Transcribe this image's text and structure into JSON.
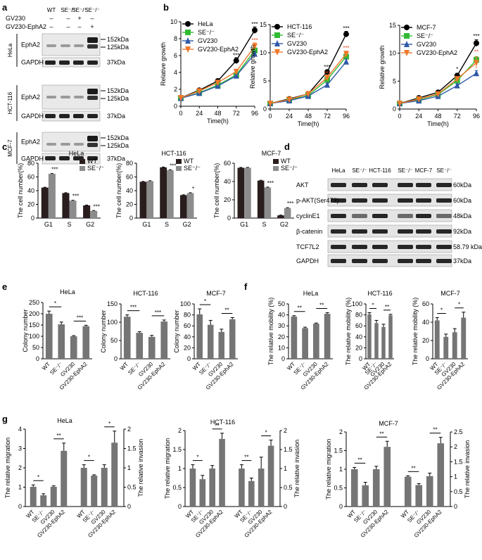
{
  "figure": {
    "panel_letters": [
      "a",
      "b",
      "c",
      "d",
      "e",
      "f",
      "g"
    ],
    "colors": {
      "dark_bar": "#2a1d1d",
      "gray_bar": "#8c8c8c",
      "mid_bar": "#757575",
      "asterisk_red": "#e8502a"
    }
  },
  "blot_a": {
    "columns": [
      "WT",
      "SE⁻/⁻",
      "SE⁻/⁻",
      "SE⁻/⁻"
    ],
    "treatment_rows": [
      {
        "label": "GV230",
        "marks": [
          "–",
          "–",
          "+",
          "–"
        ]
      },
      {
        "label": "GV230-EphA2",
        "marks": [
          "–",
          "–",
          "–",
          "+"
        ]
      }
    ],
    "cell_lines": [
      {
        "name": "HeLa",
        "lanes": [
          {
            "label": "EphA2",
            "sizes": [
              "152kDa",
              "125kDa"
            ]
          },
          {
            "label": "GAPDH",
            "sizes": [
              "37kDa"
            ]
          }
        ]
      },
      {
        "name": "HCT-116",
        "lanes": [
          {
            "label": "EphA2",
            "sizes": [
              "152kDa",
              "125kDa"
            ]
          },
          {
            "label": "GAPDH",
            "sizes": [
              "37kDa"
            ]
          }
        ]
      },
      {
        "name": "MCF-7",
        "lanes": [
          {
            "label": "EphA2",
            "sizes": [
              "152kDa",
              "125kDa"
            ]
          },
          {
            "label": "GAPDH",
            "sizes": [
              "37kDa"
            ]
          }
        ]
      }
    ]
  },
  "blot_d": {
    "columns": [
      "HeLa",
      "SE⁻/⁻",
      "HCT-116",
      "SE⁻/⁻",
      "MCF-7",
      "SE⁻/⁻"
    ],
    "rows": [
      {
        "label": "AKT",
        "size": "60kDa"
      },
      {
        "label": "p-AKT(Ser473)",
        "size": "60kDa"
      },
      {
        "label": "cyclinE1",
        "size": "48kDa"
      },
      {
        "label": "β-catenin",
        "size": "92kDa"
      },
      {
        "label": "TCF7L2",
        "size": "58.79 kDa"
      },
      {
        "label": "GAPDH",
        "size": "37kDa"
      }
    ]
  },
  "chart_data": [
    {
      "id": "b1",
      "type": "line",
      "ylabel": "Relative growth",
      "xlabel": "Time(h)",
      "x": [
        0,
        24,
        48,
        72,
        96
      ],
      "ylim": [
        0,
        10
      ],
      "yticks": [
        0,
        2,
        4,
        6,
        8,
        10
      ],
      "series": [
        {
          "name": "HeLa",
          "values": [
            1.0,
            1.9,
            3.0,
            5.4,
            9.0
          ],
          "err": [
            0.1,
            0.1,
            0.15,
            0.35,
            0.4
          ]
        },
        {
          "name": "SE⁻/⁻",
          "values": [
            0.95,
            1.6,
            2.5,
            3.7,
            6.6
          ],
          "err": [
            0.1,
            0.1,
            0.1,
            0.15,
            0.3
          ]
        },
        {
          "name": "GV230",
          "values": [
            0.95,
            1.55,
            2.4,
            3.6,
            6.2
          ],
          "err": [
            0.1,
            0.1,
            0.1,
            0.15,
            0.3
          ]
        },
        {
          "name": "GV230-EphA2",
          "values": [
            1.0,
            1.8,
            2.8,
            4.1,
            7.1
          ],
          "err": [
            0.1,
            0.1,
            0.12,
            0.2,
            0.4
          ]
        }
      ],
      "annotations": [
        {
          "x": 72,
          "y": 5.8,
          "text": "***",
          "color": "black"
        },
        {
          "x": 96,
          "y": 9.5,
          "text": "***",
          "color": "black"
        },
        {
          "x": 96,
          "y": 7.6,
          "text": "***",
          "color": "red"
        }
      ]
    },
    {
      "id": "b2",
      "type": "line",
      "ylabel": "Relative growth",
      "xlabel": "Time(h)",
      "x": [
        0,
        24,
        48,
        72,
        96
      ],
      "ylim": [
        0,
        15
      ],
      "yticks": [
        0,
        5,
        10,
        15
      ],
      "series": [
        {
          "name": "HCT-116",
          "values": [
            1.0,
            1.8,
            2.7,
            6.6,
            13.3
          ],
          "err": [
            0.1,
            0.1,
            0.15,
            0.3,
            0.5
          ]
        },
        {
          "name": "SE⁻/⁻",
          "values": [
            1.0,
            1.6,
            2.4,
            5.2,
            9.3
          ],
          "err": [
            0.1,
            0.1,
            0.1,
            0.3,
            0.5
          ]
        },
        {
          "name": "GV230",
          "values": [
            1.0,
            1.5,
            2.3,
            4.3,
            8.4
          ],
          "err": [
            0.1,
            0.1,
            0.1,
            0.3,
            0.5
          ]
        },
        {
          "name": "GV230-EphA2",
          "values": [
            1.0,
            1.7,
            2.7,
            5.6,
            9.8
          ],
          "err": [
            0.1,
            0.1,
            0.15,
            0.3,
            0.5
          ]
        }
      ],
      "annotations": [
        {
          "x": 72,
          "y": 7.1,
          "text": "***",
          "color": "black"
        },
        {
          "x": 72,
          "y": 6.0,
          "text": "***",
          "color": "red"
        },
        {
          "x": 96,
          "y": 14.0,
          "text": "***",
          "color": "black"
        },
        {
          "x": 96,
          "y": 10.5,
          "text": "***",
          "color": "red"
        }
      ]
    },
    {
      "id": "b3",
      "type": "line",
      "ylabel": "Relative growth",
      "xlabel": "Time(h)",
      "x": [
        0,
        24,
        48,
        72,
        96
      ],
      "ylim": [
        0,
        15
      ],
      "yticks": [
        0,
        5,
        10,
        15
      ],
      "series": [
        {
          "name": "MCF-7",
          "values": [
            1.0,
            2.0,
            3.0,
            6.0,
            11.8
          ],
          "err": [
            0.1,
            0.1,
            0.2,
            0.4,
            0.6
          ]
        },
        {
          "name": "SE⁻/⁻",
          "values": [
            1.0,
            1.7,
            2.6,
            5.1,
            8.8
          ],
          "err": [
            0.1,
            0.1,
            0.15,
            0.4,
            0.6
          ]
        },
        {
          "name": "GV230",
          "values": [
            1.0,
            1.5,
            2.3,
            4.2,
            6.4
          ],
          "err": [
            0.1,
            0.1,
            0.1,
            0.3,
            0.5
          ]
        },
        {
          "name": "GV230-EphA2",
          "values": [
            1.0,
            1.8,
            2.7,
            5.4,
            8.3
          ],
          "err": [
            0.1,
            0.1,
            0.15,
            0.4,
            1.0
          ]
        }
      ],
      "annotations": [
        {
          "x": 72,
          "y": 6.8,
          "text": "*",
          "color": "black"
        },
        {
          "x": 96,
          "y": 12.7,
          "text": "***",
          "color": "black"
        },
        {
          "x": 96,
          "y": 9.9,
          "text": "**",
          "color": "red"
        }
      ]
    },
    {
      "id": "c1",
      "type": "bar",
      "title": "HeLa",
      "ylabel": "The cell number(%)",
      "categories": [
        "G1",
        "S",
        "G2"
      ],
      "ylim": [
        0,
        80
      ],
      "yticks": [
        0,
        20,
        40,
        60,
        80
      ],
      "legend": "top-right",
      "series": [
        {
          "name": "WT",
          "values": [
            44.5,
            36.5,
            18.5
          ],
          "err": [
            0.5,
            0.5,
            0.5
          ]
        },
        {
          "name": "SE⁻/⁻",
          "values": [
            64.5,
            25.5,
            10.5
          ],
          "err": [
            0.5,
            0.5,
            0.5
          ]
        }
      ],
      "annotations": [
        "***",
        "***",
        "***"
      ]
    },
    {
      "id": "c2",
      "type": "bar",
      "title": "HCT-116",
      "ylabel": "The cell number(%)",
      "categories": [
        "G1",
        "S",
        "G2"
      ],
      "ylim": [
        0,
        80
      ],
      "yticks": [
        0,
        20,
        40,
        60,
        80
      ],
      "legend": "top-right",
      "series": [
        {
          "name": "WT",
          "values": [
            53,
            74,
            33.5
          ],
          "err": [
            0.5,
            0.5,
            0.5
          ]
        },
        {
          "name": "SE⁻/⁻",
          "values": [
            54,
            70,
            36.5
          ],
          "err": [
            0.5,
            0.5,
            0.5
          ]
        }
      ],
      "annotations": [
        "",
        "***",
        "*"
      ]
    },
    {
      "id": "c3",
      "type": "bar",
      "title": "MCF-7",
      "ylabel": "The cell number(%)",
      "categories": [
        "G1",
        "S",
        "G2"
      ],
      "ylim": [
        0,
        60
      ],
      "yticks": [
        0,
        20,
        40,
        60
      ],
      "legend": "top-right",
      "series": [
        {
          "name": "WT",
          "values": [
            55,
            41,
            3
          ],
          "err": [
            0.4,
            0.4,
            0.3
          ]
        },
        {
          "name": "SE⁻/⁻",
          "values": [
            55,
            33.5,
            11
          ],
          "err": [
            0.4,
            0.4,
            0.4
          ]
        }
      ],
      "annotations": [
        "",
        "***",
        "***"
      ]
    },
    {
      "id": "e1",
      "type": "bar",
      "title": "HeLa",
      "ylabel": "Colony number",
      "categories": [
        "WT",
        "SE⁻/⁻",
        "GV230",
        "GV230-EphA2"
      ],
      "ylim": [
        0,
        250
      ],
      "yticks": [
        0,
        50,
        100,
        150,
        200,
        250
      ],
      "values": [
        200,
        153,
        100,
        145
      ],
      "err": [
        12,
        10,
        3,
        4
      ],
      "brackets": [
        {
          "from": 0,
          "to": 1,
          "text": "*"
        },
        {
          "from": 2,
          "to": 3,
          "text": "***"
        }
      ]
    },
    {
      "id": "e2",
      "type": "bar",
      "title": "HCT-116",
      "ylabel": "Colony number",
      "categories": [
        "WT",
        "SE⁻/⁻",
        "GV230",
        "GV230-EphA2"
      ],
      "ylim": [
        0,
        150
      ],
      "yticks": [
        0,
        50,
        100,
        150
      ],
      "values": [
        115,
        71,
        60,
        102
      ],
      "err": [
        5,
        3,
        4,
        4
      ],
      "brackets": [
        {
          "from": 0,
          "to": 1,
          "text": "***"
        },
        {
          "from": 2,
          "to": 3,
          "text": "***"
        }
      ]
    },
    {
      "id": "e3",
      "type": "bar",
      "title": "MCF-7",
      "ylabel": "Colony number",
      "categories": [
        "WT",
        "SE⁻/⁻",
        "GV230",
        "GV230-EphA2"
      ],
      "ylim": [
        0,
        100
      ],
      "yticks": [
        0,
        20,
        40,
        60,
        80,
        100
      ],
      "values": [
        81,
        62,
        49,
        72
      ],
      "err": [
        10,
        8,
        5,
        3
      ],
      "brackets": [
        {
          "from": 0,
          "to": 1,
          "text": "*"
        },
        {
          "from": 2,
          "to": 3,
          "text": "**"
        }
      ]
    },
    {
      "id": "f1",
      "type": "bar",
      "title": "HeLa",
      "ylabel": "The relative mobility (%)",
      "categories": [
        "WT",
        "SE⁻/⁻",
        "GV230",
        "GV230-EphA2"
      ],
      "ylim": [
        0,
        50
      ],
      "yticks": [
        0,
        10,
        20,
        30,
        40,
        50
      ],
      "values": [
        38.5,
        28,
        32,
        41
      ],
      "err": [
        0.8,
        0.8,
        0.6,
        1.0
      ],
      "brackets": [
        {
          "from": 0,
          "to": 1,
          "text": "**"
        },
        {
          "from": 2,
          "to": 3,
          "text": "**"
        }
      ]
    },
    {
      "id": "f2",
      "type": "bar",
      "title": "HCT-116",
      "ylabel": "The relative mobility (%)",
      "categories": [
        "WT",
        "SE⁻/⁻",
        "GV230",
        "GV230-EphA2"
      ],
      "ylim": [
        0,
        100
      ],
      "yticks": [
        0,
        20,
        40,
        60,
        80,
        100
      ],
      "values": [
        81,
        65,
        58,
        79
      ],
      "err": [
        3,
        5,
        5,
        2
      ],
      "brackets": [
        {
          "from": 0,
          "to": 1,
          "text": "*"
        },
        {
          "from": 2,
          "to": 3,
          "text": "**"
        }
      ]
    },
    {
      "id": "f3",
      "type": "bar",
      "title": "MCF-7",
      "ylabel": "The relative mobility (%)",
      "categories": [
        "WT",
        "SE⁻/⁻",
        "GV230",
        "GV230-EphA2"
      ],
      "ylim": [
        0,
        60
      ],
      "yticks": [
        0,
        20,
        40,
        60
      ],
      "values": [
        42,
        24,
        29,
        45
      ],
      "err": [
        3,
        3,
        4,
        6
      ],
      "brackets": [
        {
          "from": 0,
          "to": 1,
          "text": "*"
        },
        {
          "from": 2,
          "to": 3,
          "text": "*"
        }
      ]
    },
    {
      "id": "g1",
      "type": "bar",
      "title": "HeLa",
      "ylabel": "The relative migration",
      "y2label": "The relative invasion",
      "categories": [
        "WT",
        "SE⁻/⁻",
        "GV230",
        "GV230-EphA2"
      ],
      "ylim": [
        0,
        4
      ],
      "yticks": [
        0,
        1,
        2,
        3,
        4
      ],
      "y2lim": [
        0,
        2.0
      ],
      "y2ticks": [
        0,
        0.5,
        1.0,
        1.5,
        2.0
      ],
      "migration": [
        1.02,
        0.58,
        1.02,
        2.88
      ],
      "migration_err": [
        0.1,
        0.08,
        0.05,
        0.4
      ],
      "invasion": [
        1.0,
        0.8,
        1.0,
        1.65
      ],
      "invasion_err": [
        0.08,
        0.02,
        0.08,
        0.3
      ],
      "migration_brackets": [
        {
          "from": 0,
          "to": 1,
          "text": "*"
        },
        {
          "from": 2,
          "to": 3,
          "text": "**"
        }
      ],
      "invasion_brackets": [
        {
          "from": 0,
          "to": 1,
          "text": "*"
        },
        {
          "from": 2,
          "to": 3,
          "text": "*"
        }
      ]
    },
    {
      "id": "g2",
      "type": "bar",
      "title": "HCT-116",
      "ylabel": "The relative migration",
      "y2label": "The relative invasion",
      "categories": [
        "WT",
        "SE⁻/⁻",
        "GV230",
        "GV230-EphA2"
      ],
      "ylim": [
        0,
        2.0
      ],
      "yticks": [
        0,
        0.5,
        1.0,
        1.5,
        2.0
      ],
      "y2lim": [
        0,
        2.0
      ],
      "y2ticks": [
        0,
        0.5,
        1.0,
        1.5,
        2.0
      ],
      "migration": [
        1.0,
        0.72,
        1.0,
        1.78
      ],
      "migration_err": [
        0.1,
        0.1,
        0.08,
        0.15
      ],
      "invasion": [
        1.0,
        0.67,
        1.0,
        1.6
      ],
      "invasion_err": [
        0.1,
        0.08,
        0.3,
        0.15
      ],
      "migration_brackets": [
        {
          "from": 0,
          "to": 1,
          "text": "*"
        },
        {
          "from": 2,
          "to": 3,
          "text": "**"
        }
      ],
      "invasion_brackets": [
        {
          "from": 0,
          "to": 1,
          "text": "**"
        },
        {
          "from": 2,
          "to": 3,
          "text": "*"
        }
      ]
    },
    {
      "id": "g3",
      "type": "bar",
      "title": "MCF-7",
      "ylabel": "The relative migration",
      "y2label": "The relative invasion",
      "categories": [
        "WT",
        "SE⁻/⁻",
        "GV230",
        "GV230-EphA2"
      ],
      "ylim": [
        0,
        2.0
      ],
      "yticks": [
        0,
        0.5,
        1.0,
        1.5,
        2.0
      ],
      "y2lim": [
        0,
        2.5
      ],
      "y2ticks": [
        0,
        0.5,
        1.0,
        1.5,
        2.0,
        2.5
      ],
      "migration": [
        1.0,
        0.57,
        1.0,
        1.6
      ],
      "migration_err": [
        0.05,
        0.08,
        0.08,
        0.15
      ],
      "invasion": [
        1.0,
        0.72,
        1.02,
        2.12
      ],
      "invasion_err": [
        0.03,
        0.05,
        0.1,
        0.2
      ],
      "migration_brackets": [
        {
          "from": 0,
          "to": 1,
          "text": "**"
        },
        {
          "from": 2,
          "to": 3,
          "text": "**"
        }
      ],
      "invasion_brackets": [
        {
          "from": 0,
          "to": 1,
          "text": "**"
        },
        {
          "from": 2,
          "to": 3,
          "text": "**"
        }
      ]
    }
  ]
}
